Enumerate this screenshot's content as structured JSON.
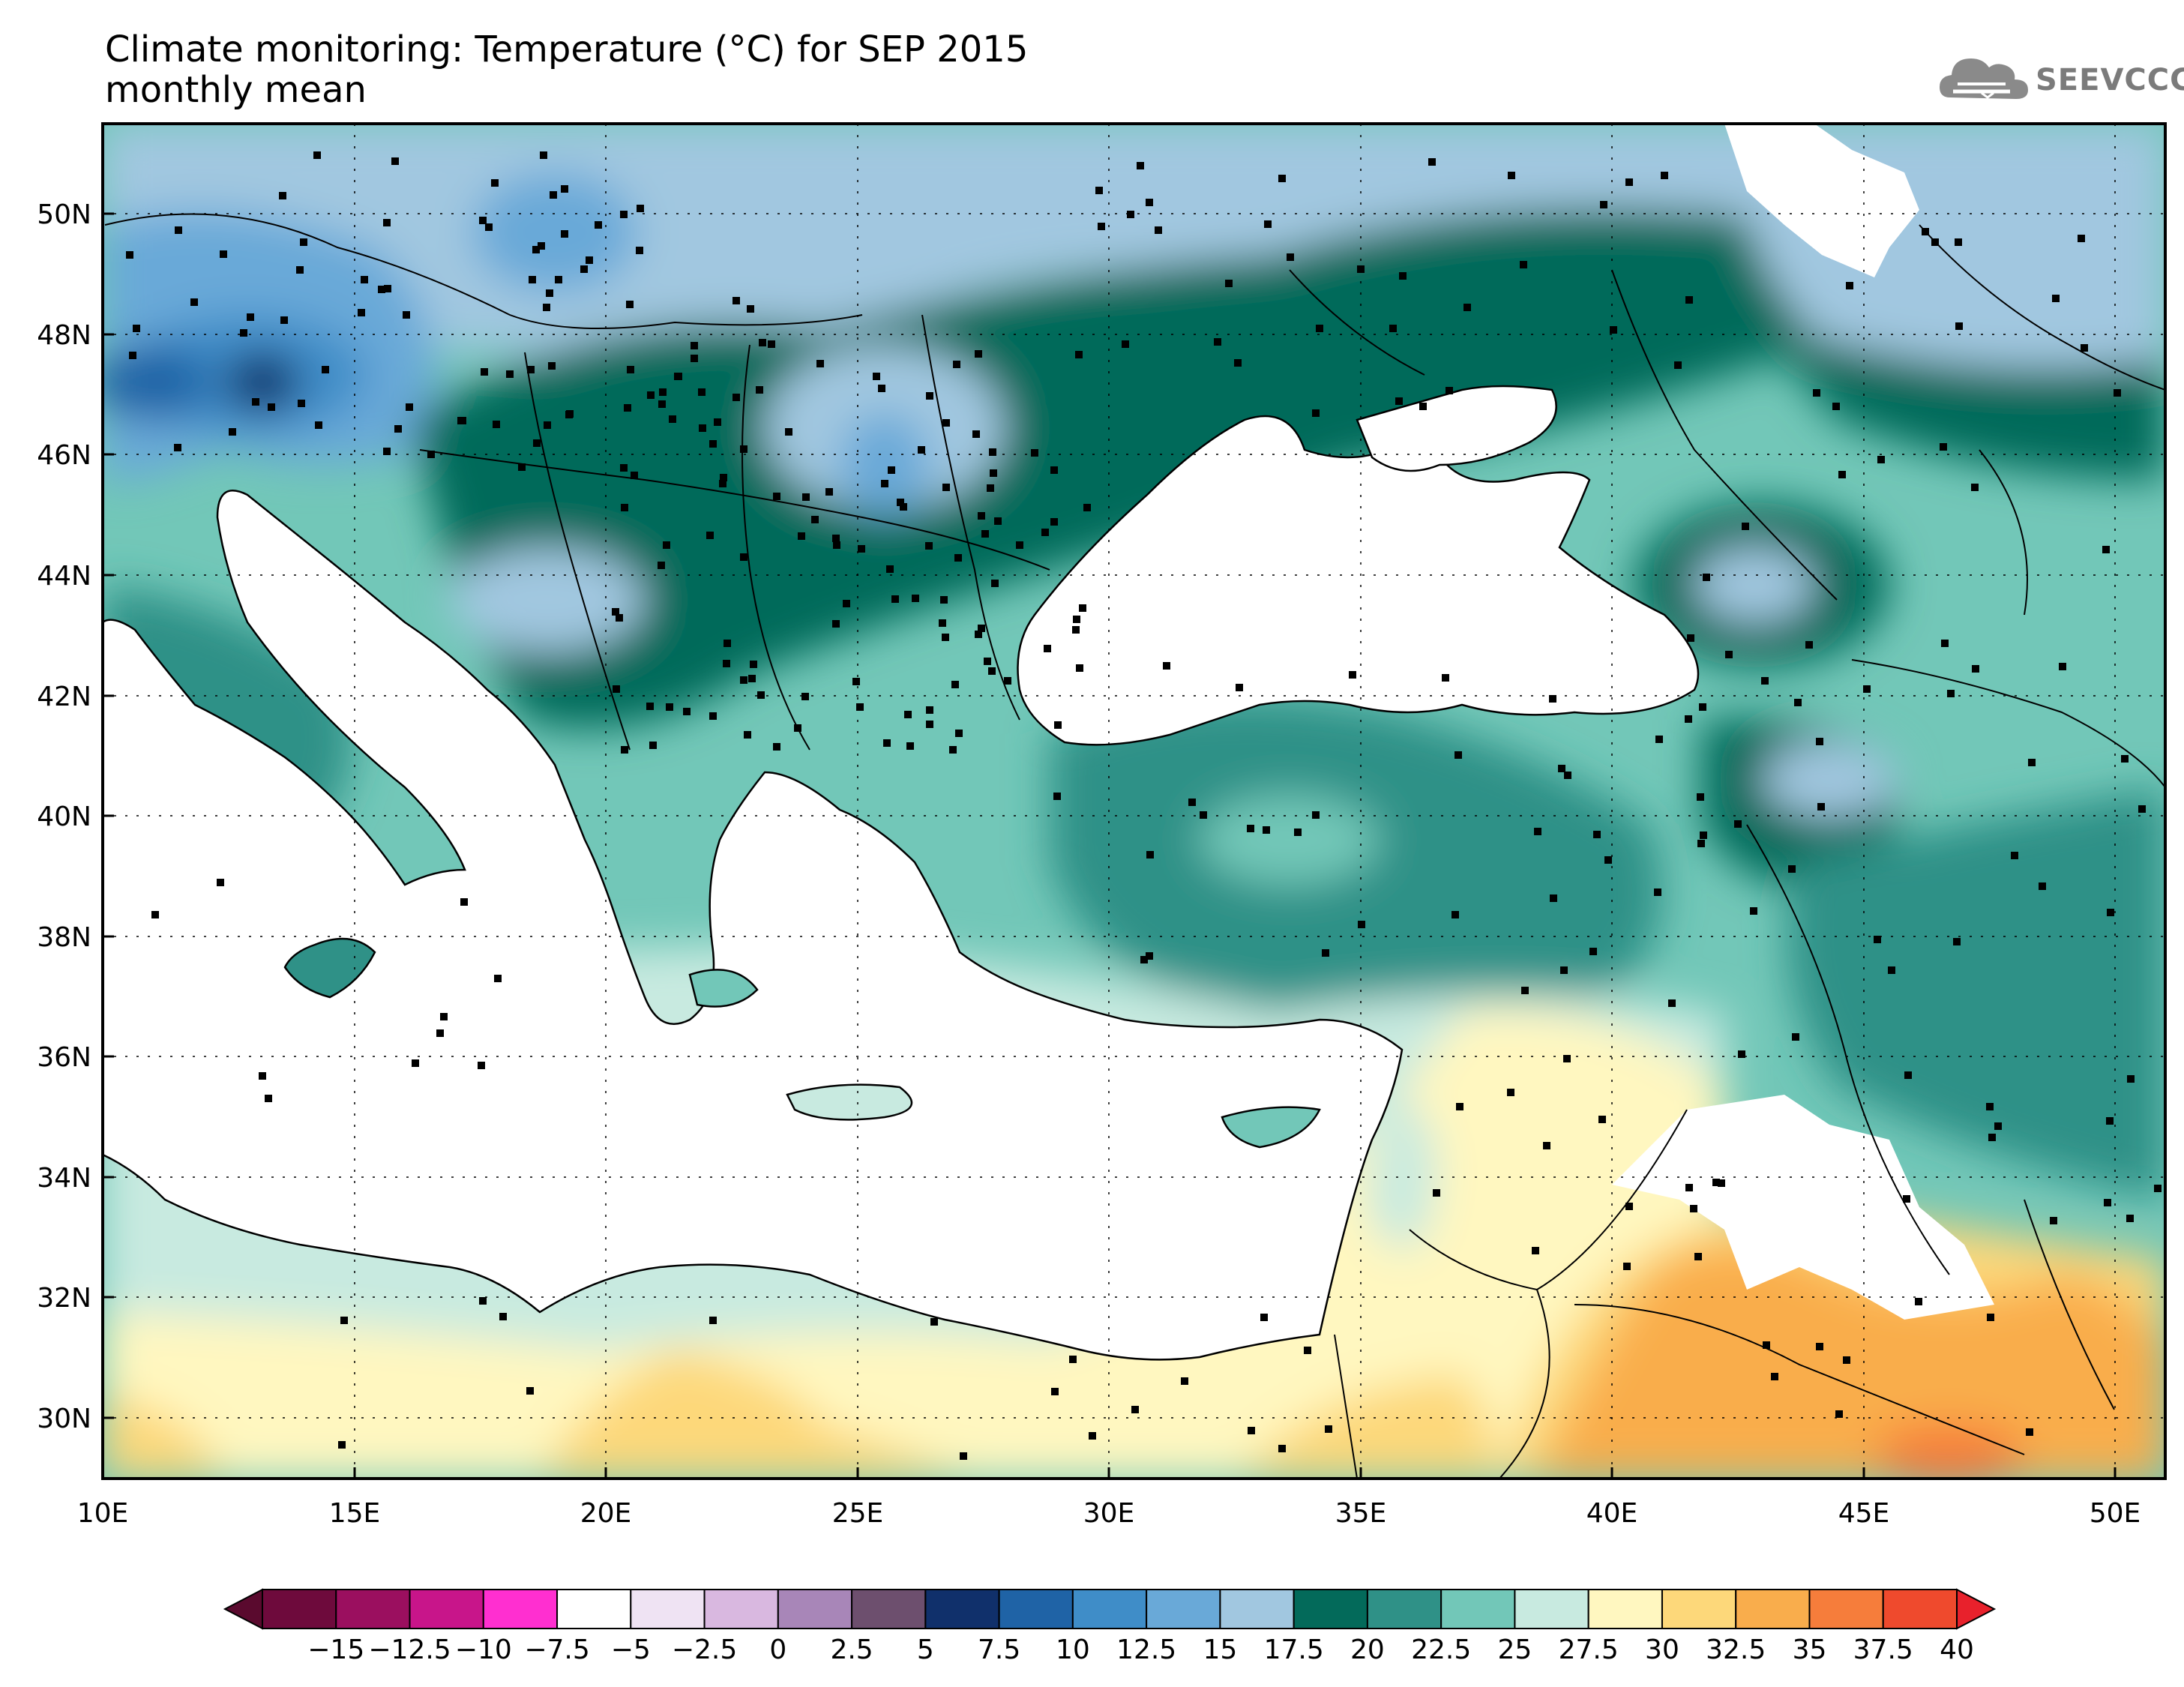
{
  "title": {
    "line1": "Climate monitoring: Temperature (°C) for SEP 2015",
    "line2": "monthly mean"
  },
  "logo": {
    "text": "SEEVCCC",
    "icon": "cloud-icon"
  },
  "map": {
    "lon_ticks": [
      "10E",
      "15E",
      "20E",
      "25E",
      "30E",
      "35E",
      "40E",
      "45E",
      "50E"
    ],
    "lat_ticks": [
      "30N",
      "32N",
      "34N",
      "36N",
      "38N",
      "40N",
      "42N",
      "44N",
      "46N",
      "48N",
      "50N"
    ],
    "lon_range": [
      10,
      51
    ],
    "lat_range": [
      29,
      51.5
    ],
    "gridlines": true
  },
  "colorbar": {
    "labels": [
      "−15",
      "−12.5",
      "−10",
      "−7.5",
      "−5",
      "−2.5",
      "0",
      "2.5",
      "5",
      "7.5",
      "10",
      "12.5",
      "15",
      "17.5",
      "20",
      "22.5",
      "25",
      "27.5",
      "30",
      "32.5",
      "35",
      "37.5",
      "40"
    ],
    "colors": [
      "#6e0a3c",
      "#9b0f5f",
      "#c8158a",
      "#ff2fd0",
      "#ffffff",
      "#efe3f3",
      "#d9b8e0",
      "#a886b8",
      "#6d4f6e",
      "#10306b",
      "#1f63a6",
      "#3f8dc8",
      "#69a9d8",
      "#a1c7e0",
      "#036a5a",
      "#2f9187",
      "#72c7b8",
      "#c8eae0",
      "#fff7c0",
      "#fdd87a",
      "#f9ad4c",
      "#f67d3b",
      "#ef4a2d"
    ],
    "under_color": "#5a0a2e",
    "over_color": "#e8212c"
  }
}
